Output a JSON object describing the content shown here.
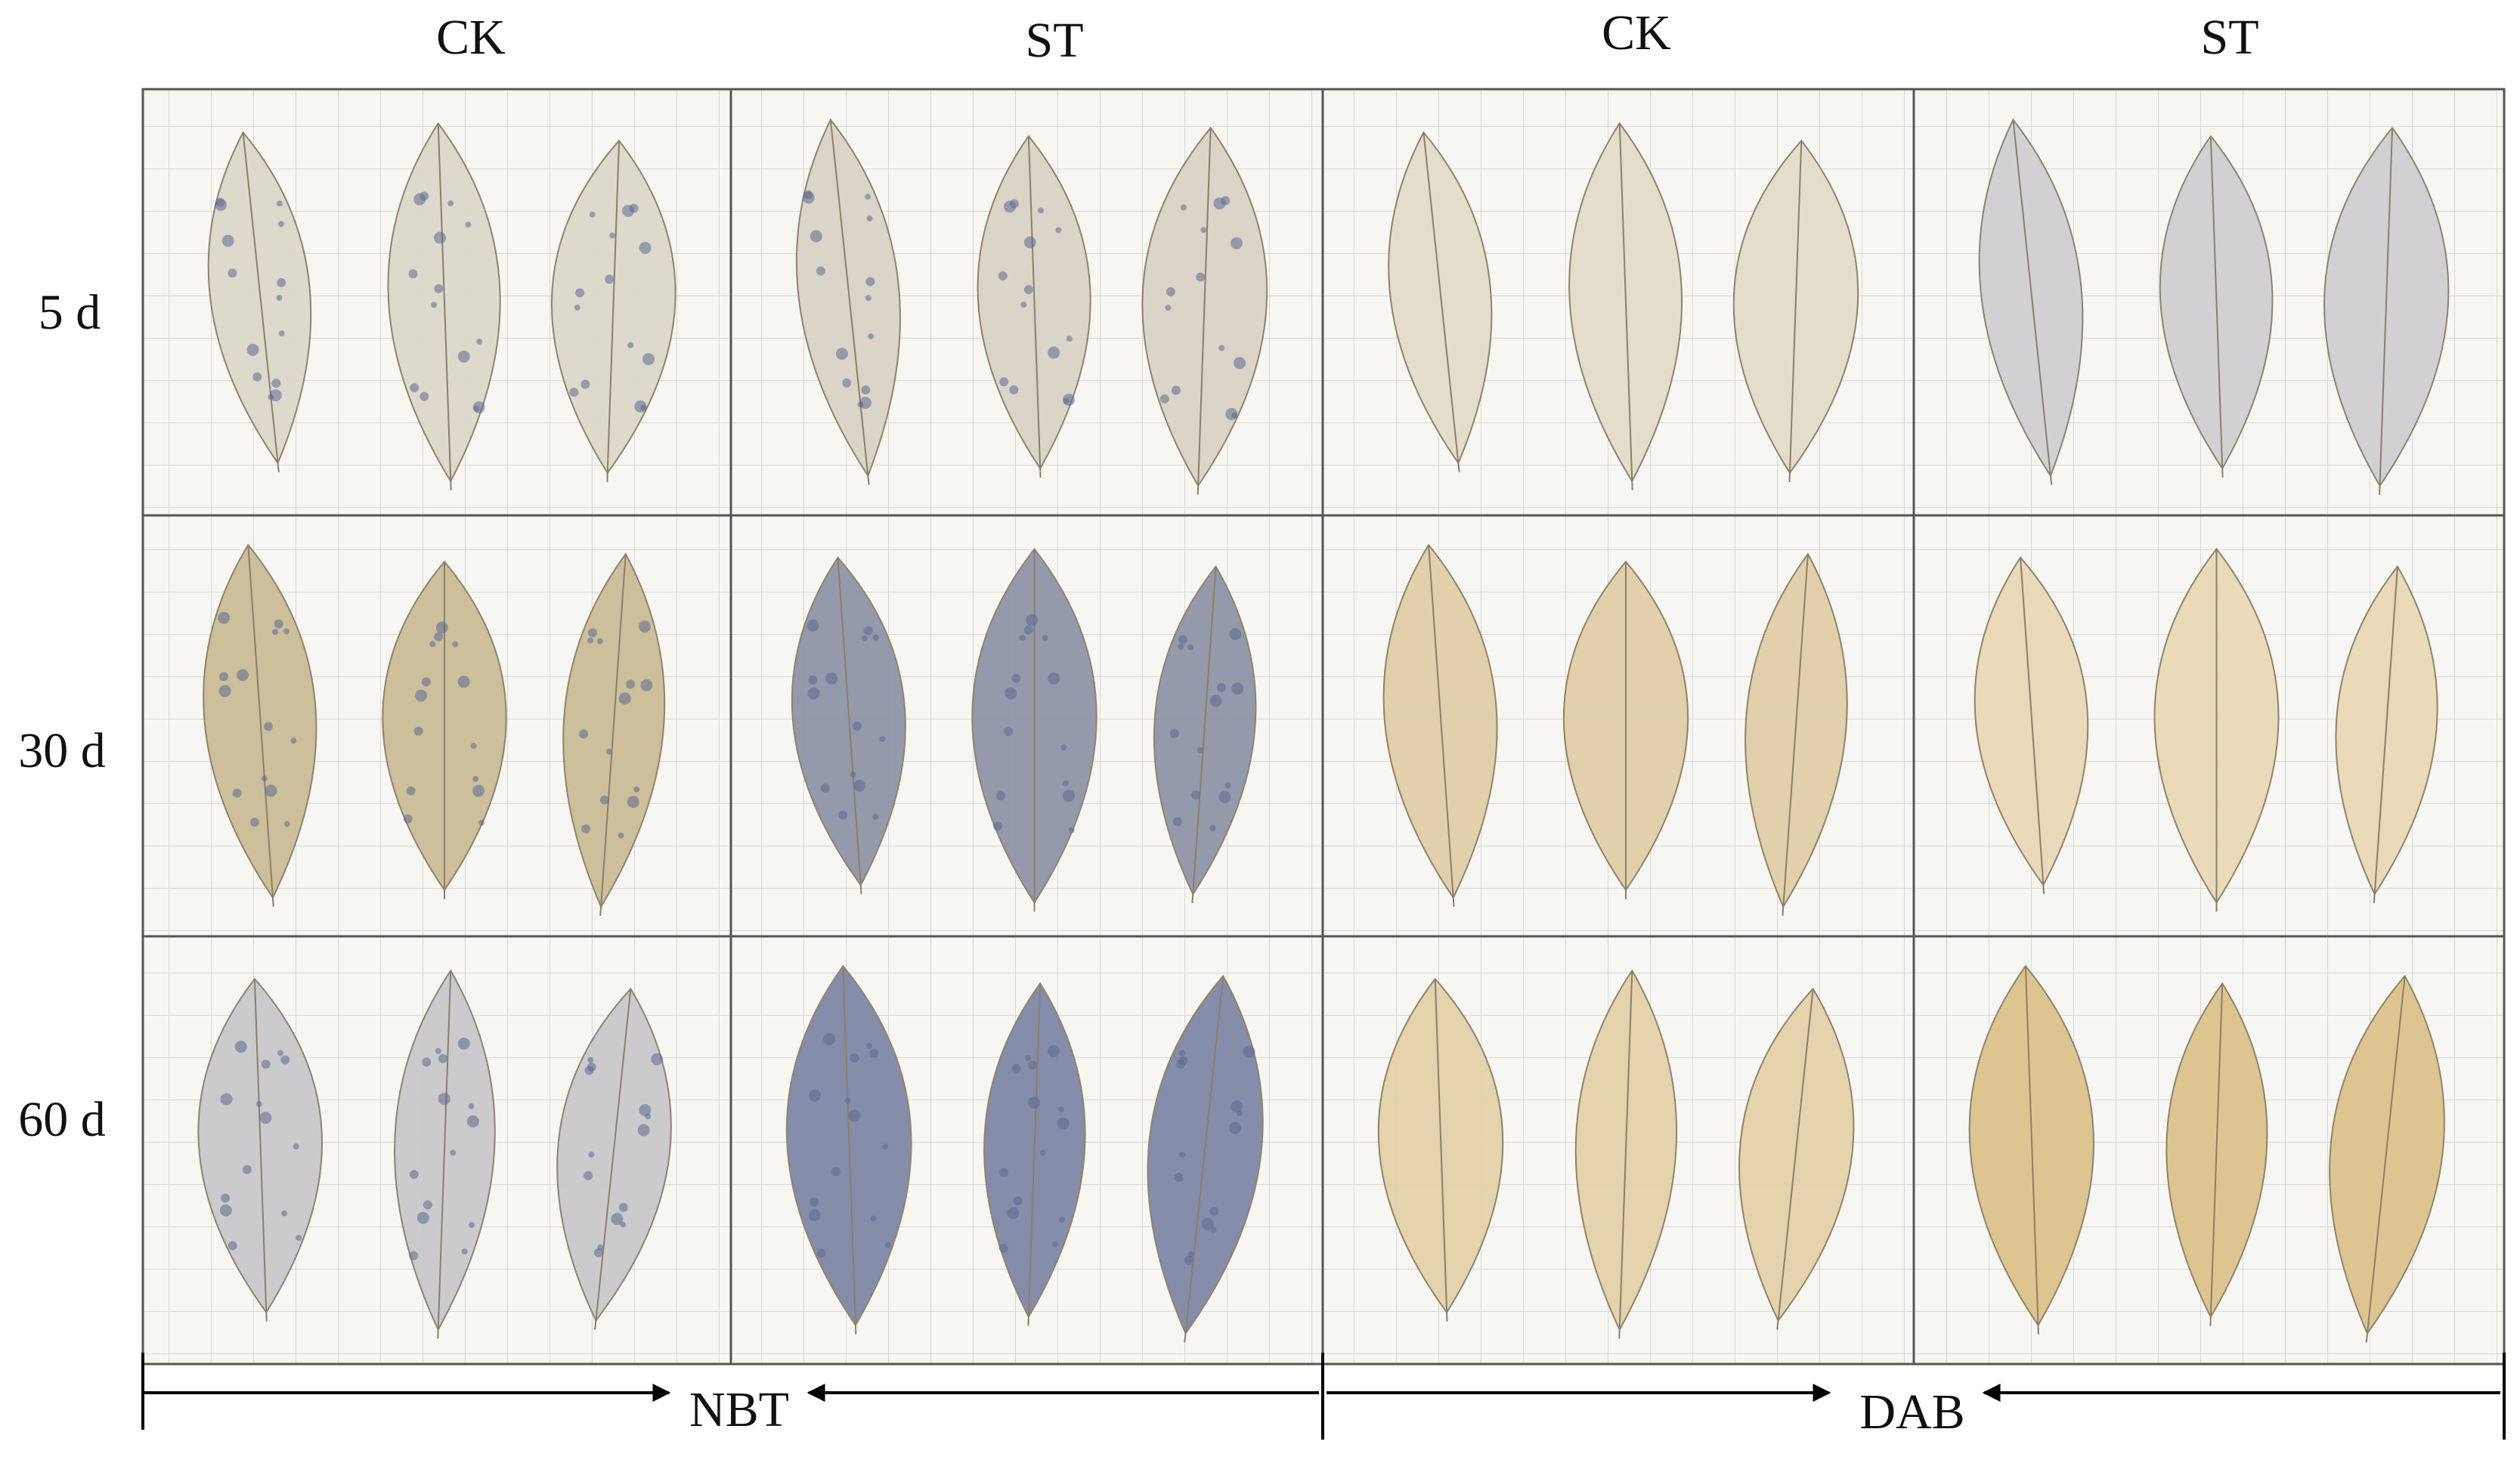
{
  "column_headers": [
    "CK",
    "ST",
    "CK",
    "ST"
  ],
  "row_labels": [
    "5 d",
    "30 d",
    "60 d"
  ],
  "stain_labels": [
    "NBT",
    "DAB"
  ]
}
